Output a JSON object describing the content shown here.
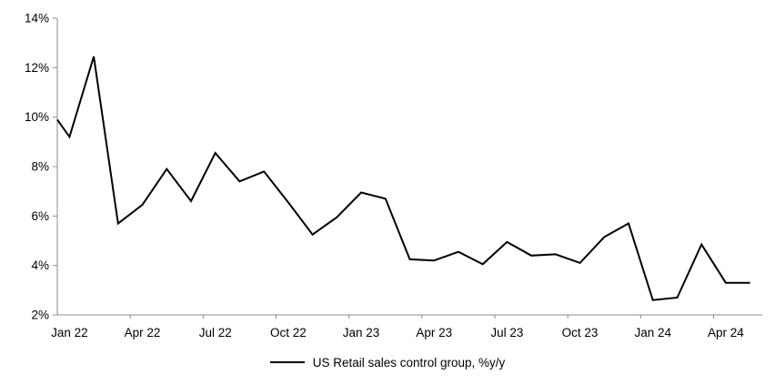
{
  "chart_data": {
    "type": "line",
    "title": "",
    "legend_label": "US Retail sales control group, %y/y",
    "legend_position": "bottom-center",
    "categories": [
      "Jan 22",
      "Feb 22",
      "Mar 22",
      "Apr 22",
      "May 22",
      "Jun 22",
      "Jul 22",
      "Aug 22",
      "Sep 22",
      "Oct 22",
      "Nov 22",
      "Dec 22",
      "Jan 23",
      "Feb 23",
      "Mar 23",
      "Apr 23",
      "May 23",
      "Jun 23",
      "Jul 23",
      "Aug 23",
      "Sep 23",
      "Oct 23",
      "Nov 23",
      "Dec 23",
      "Jan 24",
      "Feb 24",
      "Mar 24",
      "Apr 24",
      "May 24"
    ],
    "x_tick_labels": [
      "Jan 22",
      "Apr 22",
      "Jul 22",
      "Oct 22",
      "Jan 23",
      "Apr 23",
      "Jul 23",
      "Oct 23",
      "Jan 24",
      "Apr 24"
    ],
    "x_label_every": 3,
    "series": [
      {
        "name": "US Retail sales control group, %y/y",
        "color": "#000000",
        "values": [
          9.2,
          12.45,
          5.7,
          6.45,
          7.9,
          6.6,
          8.55,
          7.4,
          7.8,
          6.55,
          5.25,
          5.95,
          6.95,
          6.7,
          4.25,
          4.2,
          4.55,
          4.05,
          4.95,
          4.4,
          4.45,
          4.1,
          5.15,
          5.7,
          2.6,
          2.7,
          4.85,
          3.3,
          3.3
        ]
      }
    ],
    "lead_in_value_at_axis": 9.9,
    "ylim": [
      2,
      14
    ],
    "y_tick_step": 2,
    "y_tick_labels": [
      "2%",
      "4%",
      "6%",
      "8%",
      "10%",
      "12%",
      "14%"
    ],
    "grid": false,
    "axis_color": "#8c8c8c"
  }
}
